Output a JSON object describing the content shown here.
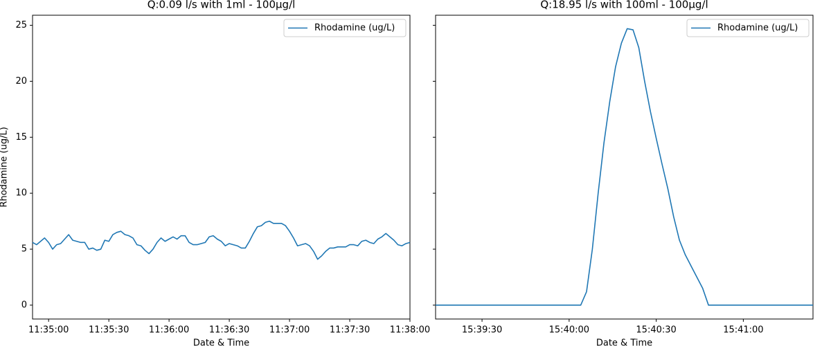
{
  "chart_data": [
    {
      "type": "line",
      "title": "Q:0.09 l/s with 1ml - 100μg/l",
      "xlabel": "Date & Time",
      "ylabel": "Rhodamine (ug/L)",
      "x": [
        "11:34:52",
        "11:34:54",
        "11:34:56",
        "11:34:58",
        "11:35:00",
        "11:35:02",
        "11:35:04",
        "11:35:06",
        "11:35:08",
        "11:35:10",
        "11:35:12",
        "11:35:14",
        "11:35:16",
        "11:35:18",
        "11:35:20",
        "11:35:22",
        "11:35:24",
        "11:35:26",
        "11:35:28",
        "11:35:30",
        "11:35:32",
        "11:35:34",
        "11:35:36",
        "11:35:38",
        "11:35:40",
        "11:35:42",
        "11:35:44",
        "11:35:46",
        "11:35:48",
        "11:35:50",
        "11:35:52",
        "11:35:54",
        "11:35:56",
        "11:35:58",
        "11:36:00",
        "11:36:02",
        "11:36:04",
        "11:36:06",
        "11:36:08",
        "11:36:10",
        "11:36:12",
        "11:36:14",
        "11:36:16",
        "11:36:18",
        "11:36:20",
        "11:36:22",
        "11:36:24",
        "11:36:26",
        "11:36:28",
        "11:36:30",
        "11:36:32",
        "11:36:34",
        "11:36:36",
        "11:36:38",
        "11:36:40",
        "11:36:42",
        "11:36:44",
        "11:36:46",
        "11:36:48",
        "11:36:50",
        "11:36:52",
        "11:36:54",
        "11:36:56",
        "11:36:58",
        "11:37:00",
        "11:37:02",
        "11:37:04",
        "11:37:06",
        "11:37:08",
        "11:37:10",
        "11:37:12",
        "11:37:14",
        "11:37:16",
        "11:37:18",
        "11:37:20",
        "11:37:22",
        "11:37:24",
        "11:37:26",
        "11:37:28",
        "11:37:30",
        "11:37:32",
        "11:37:34",
        "11:37:36",
        "11:37:38",
        "11:37:40",
        "11:37:42",
        "11:37:44",
        "11:37:46",
        "11:37:48",
        "11:37:50",
        "11:37:52",
        "11:37:54",
        "11:37:56",
        "11:37:58",
        "11:38:00"
      ],
      "series": [
        {
          "name": "Rhodamine (ug/L)",
          "color": "#1f77b4",
          "values": [
            5.6,
            5.4,
            5.7,
            6.0,
            5.6,
            5.0,
            5.4,
            5.5,
            5.9,
            6.3,
            5.8,
            5.7,
            5.6,
            5.6,
            5.0,
            5.1,
            4.9,
            5.0,
            5.8,
            5.7,
            6.3,
            6.5,
            6.6,
            6.3,
            6.2,
            6.0,
            5.4,
            5.3,
            4.9,
            4.6,
            5.0,
            5.6,
            6.0,
            5.7,
            5.9,
            6.1,
            5.9,
            6.2,
            6.2,
            5.6,
            5.4,
            5.4,
            5.5,
            5.6,
            6.1,
            6.2,
            5.9,
            5.7,
            5.3,
            5.5,
            5.4,
            5.3,
            5.1,
            5.1,
            5.7,
            6.4,
            7.0,
            7.1,
            7.4,
            7.5,
            7.3,
            7.3,
            7.3,
            7.1,
            6.6,
            6.0,
            5.3,
            5.4,
            5.5,
            5.3,
            4.8,
            4.1,
            4.4,
            4.8,
            5.1,
            5.1,
            5.2,
            5.2,
            5.2,
            5.4,
            5.4,
            5.3,
            5.7,
            5.8,
            5.6,
            5.5,
            5.9,
            6.1,
            6.4,
            6.1,
            5.8,
            5.4,
            5.3,
            5.5,
            5.6
          ]
        }
      ],
      "xlim": [
        "11:34:52",
        "11:38:00"
      ],
      "xticks": [
        "11:35:00",
        "11:35:30",
        "11:36:00",
        "11:36:30",
        "11:37:00",
        "11:37:30",
        "11:38:00"
      ],
      "ylim": [
        -1.24,
        25.9
      ],
      "yticks": [
        0,
        5,
        10,
        15,
        20,
        25
      ],
      "ytick_labels": true,
      "legend": "upper right"
    },
    {
      "type": "line",
      "title": "Q:18.95 l/s with 100ml - 100μg/l",
      "xlabel": "Date & Time",
      "x": [
        "15:39:14",
        "15:40:04",
        "15:40:06",
        "15:40:08",
        "15:40:10",
        "15:40:12",
        "15:40:14",
        "15:40:16",
        "15:40:18",
        "15:40:20",
        "15:40:22",
        "15:40:24",
        "15:40:26",
        "15:40:28",
        "15:40:30",
        "15:40:32",
        "15:40:34",
        "15:40:36",
        "15:40:38",
        "15:40:40",
        "15:40:42",
        "15:40:44",
        "15:40:46",
        "15:40:48",
        "15:41:24"
      ],
      "series": [
        {
          "name": "Rhodamine (ug/L)",
          "color": "#1f77b4",
          "values": [
            0,
            0,
            1.2,
            5.0,
            10.0,
            14.5,
            18.2,
            21.3,
            23.4,
            24.7,
            24.6,
            23.0,
            20.0,
            17.3,
            14.9,
            12.6,
            10.4,
            7.9,
            5.8,
            4.5,
            3.5,
            2.5,
            1.5,
            0,
            0
          ]
        }
      ],
      "xlim": [
        "15:39:14",
        "15:41:24"
      ],
      "xticks": [
        "15:39:30",
        "15:40:00",
        "15:40:30",
        "15:41:00"
      ],
      "ylim": [
        -1.24,
        25.9
      ],
      "yticks": [
        0,
        5,
        10,
        15,
        20,
        25
      ],
      "ytick_labels": false,
      "legend": "upper right"
    }
  ]
}
